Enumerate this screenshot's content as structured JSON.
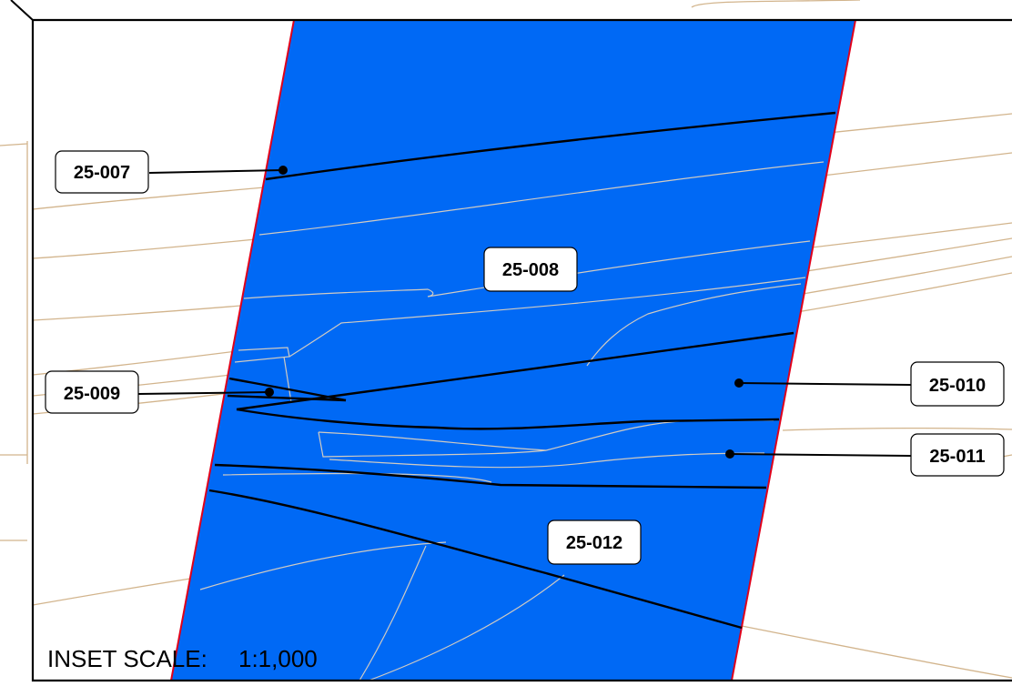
{
  "inset": {
    "scale_prefix": "INSET SCALE:",
    "scale_value": "1:1,000"
  },
  "colors": {
    "parcel_fill": "#0069f5",
    "parcel_edge": "#e0001a",
    "base_lines": "#d2b48c",
    "lot_lines": "#000000",
    "background": "#ffffff"
  },
  "parcels": [
    {
      "id": "25-007"
    },
    {
      "id": "25-008"
    },
    {
      "id": "25-009"
    },
    {
      "id": "25-010"
    },
    {
      "id": "25-011"
    },
    {
      "id": "25-012"
    }
  ]
}
